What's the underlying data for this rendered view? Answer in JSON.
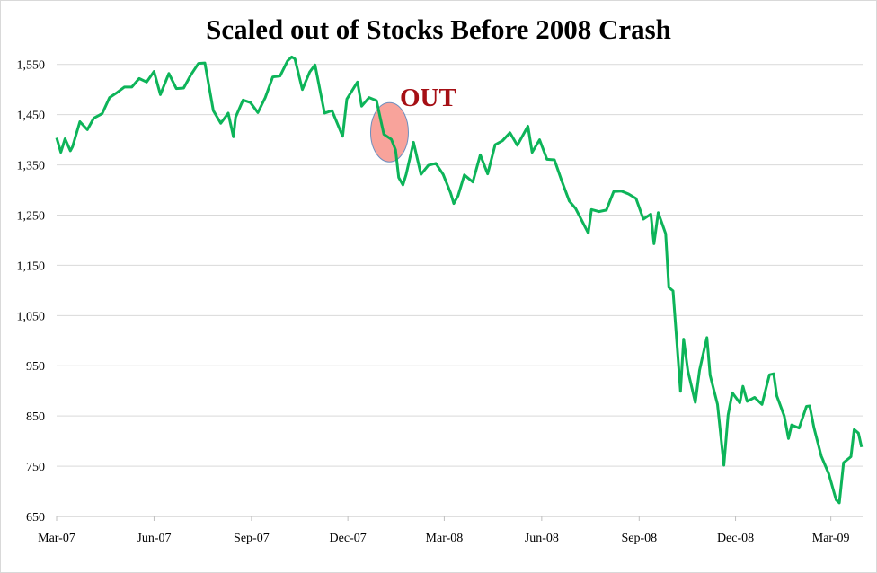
{
  "chart_data": {
    "type": "line",
    "title": "Scaled out of Stocks Before 2008 Crash",
    "xlabel": "",
    "ylabel": "",
    "ylim": [
      650,
      1571
    ],
    "xlim": [
      "2007-03-01",
      "2009-03-31"
    ],
    "grid": true,
    "legend": "none",
    "y_ticks": [
      650,
      750,
      850,
      950,
      1050,
      1150,
      1250,
      1350,
      1450,
      1550
    ],
    "y_tick_labels": [
      "650",
      "750",
      "850",
      "950",
      "1,050",
      "1,150",
      "1,250",
      "1,350",
      "1,450",
      "1,550"
    ],
    "x_ticks": [
      "2007-03-01",
      "2007-06-01",
      "2007-09-01",
      "2007-12-01",
      "2008-03-01",
      "2008-06-01",
      "2008-09-01",
      "2008-12-01",
      "2009-03-01"
    ],
    "x_tick_labels": [
      "Mar-07",
      "Jun-07",
      "Sep-07",
      "Dec-07",
      "Mar-08",
      "Jun-08",
      "Sep-08",
      "Dec-08",
      "Mar-09"
    ],
    "line_color": "#00b050",
    "series": [
      {
        "x": [
          "2007-03-01",
          "2007-03-05",
          "2007-03-09",
          "2007-03-14",
          "2007-03-16",
          "2007-03-23",
          "2007-03-30",
          "2007-04-05",
          "2007-04-13",
          "2007-04-20",
          "2007-04-27",
          "2007-05-04",
          "2007-05-11",
          "2007-05-18",
          "2007-05-25",
          "2007-06-01",
          "2007-06-07",
          "2007-06-15",
          "2007-06-22",
          "2007-06-29",
          "2007-07-06",
          "2007-07-13",
          "2007-07-19",
          "2007-07-27",
          "2007-08-03",
          "2007-08-10",
          "2007-08-15",
          "2007-08-17",
          "2007-08-24",
          "2007-08-31",
          "2007-09-07",
          "2007-09-14",
          "2007-09-21",
          "2007-09-28",
          "2007-10-05",
          "2007-10-09",
          "2007-10-12",
          "2007-10-19",
          "2007-10-26",
          "2007-10-31",
          "2007-11-09",
          "2007-11-16",
          "2007-11-26",
          "2007-11-30",
          "2007-12-10",
          "2007-12-14",
          "2007-12-21",
          "2007-12-28",
          "2008-01-04",
          "2008-01-11",
          "2008-01-15",
          "2008-01-18",
          "2008-01-22",
          "2008-01-25",
          "2008-02-01",
          "2008-02-08",
          "2008-02-15",
          "2008-02-22",
          "2008-02-29",
          "2008-03-07",
          "2008-03-10",
          "2008-03-14",
          "2008-03-20",
          "2008-03-28",
          "2008-04-04",
          "2008-04-11",
          "2008-04-18",
          "2008-04-25",
          "2008-05-02",
          "2008-05-09",
          "2008-05-19",
          "2008-05-23",
          "2008-05-30",
          "2008-06-06",
          "2008-06-13",
          "2008-06-20",
          "2008-06-27",
          "2008-07-03",
          "2008-07-15",
          "2008-07-18",
          "2008-07-25",
          "2008-08-01",
          "2008-08-08",
          "2008-08-15",
          "2008-08-22",
          "2008-08-29",
          "2008-09-05",
          "2008-09-12",
          "2008-09-15",
          "2008-09-19",
          "2008-09-26",
          "2008-09-29",
          "2008-10-03",
          "2008-10-10",
          "2008-10-13",
          "2008-10-17",
          "2008-10-24",
          "2008-10-28",
          "2008-10-31",
          "2008-11-04",
          "2008-11-07",
          "2008-11-14",
          "2008-11-20",
          "2008-11-24",
          "2008-11-28",
          "2008-12-05",
          "2008-12-08",
          "2008-12-12",
          "2008-12-19",
          "2008-12-26",
          "2009-01-02",
          "2009-01-06",
          "2009-01-09",
          "2009-01-16",
          "2009-01-20",
          "2009-01-23",
          "2009-01-30",
          "2009-02-06",
          "2009-02-09",
          "2009-02-13",
          "2009-02-20",
          "2009-02-27",
          "2009-03-06",
          "2009-03-09",
          "2009-03-13",
          "2009-03-20",
          "2009-03-23",
          "2009-03-27",
          "2009-03-30"
        ],
        "values": [
          1404,
          1375,
          1402,
          1378,
          1386,
          1436,
          1420,
          1443,
          1452,
          1484,
          1494,
          1505,
          1505,
          1522,
          1515,
          1536,
          1490,
          1532,
          1502,
          1503,
          1530,
          1552,
          1553,
          1458,
          1433,
          1453,
          1406,
          1445,
          1479,
          1474,
          1454,
          1484,
          1525,
          1527,
          1557,
          1565,
          1561,
          1500,
          1535,
          1549,
          1453,
          1458,
          1407,
          1481,
          1515,
          1467,
          1484,
          1478,
          1411,
          1401,
          1380,
          1325,
          1310,
          1331,
          1395,
          1331,
          1349,
          1353,
          1331,
          1294,
          1273,
          1288,
          1330,
          1316,
          1370,
          1332,
          1390,
          1398,
          1414,
          1389,
          1427,
          1375,
          1400,
          1361,
          1360,
          1318,
          1278,
          1263,
          1214,
          1261,
          1257,
          1260,
          1297,
          1298,
          1292,
          1283,
          1242,
          1252,
          1193,
          1255,
          1213,
          1106,
          1099,
          899,
          1003,
          940,
          877,
          941,
          969,
          1006,
          931,
          873,
          752,
          852,
          896,
          876,
          909,
          879,
          887,
          873,
          932,
          934,
          890,
          850,
          805,
          832,
          826,
          869,
          870,
          827,
          770,
          735,
          683,
          677,
          757,
          769,
          823,
          816,
          788
        ]
      }
    ],
    "annotation": {
      "label": "OUT",
      "label_color": "#a50f15",
      "circle_center_date": "2008-01-11",
      "circle_center_value": 1415,
      "circle_fill": "#f8a39b",
      "circle_stroke": "#6c8ebf"
    }
  }
}
